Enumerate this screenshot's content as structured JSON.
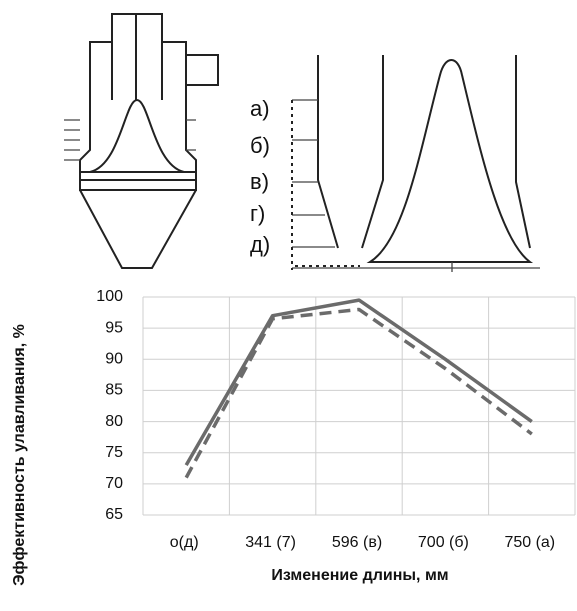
{
  "chart_data": {
    "type": "line",
    "xlabel": "Изменение длины, мм",
    "ylabel": "Эффективность улавливания, %",
    "categories": [
      "о(д)",
      "341 (7)",
      "596 (в)",
      "700 (б)",
      "750 (а)"
    ],
    "series": [
      {
        "color": "#6b6b6b",
        "dash": false,
        "values": [
          73,
          97,
          99.5,
          90,
          80
        ]
      },
      {
        "color": "#6b6b6b",
        "dash": true,
        "values": [
          71,
          96.5,
          98,
          88.5,
          78
        ]
      }
    ],
    "ylim": [
      65,
      100
    ],
    "yticks": [
      65,
      70,
      75,
      80,
      85,
      90,
      95,
      100
    ],
    "grid": true
  },
  "diagram": {
    "labels": [
      "а)",
      "б)",
      "в)",
      "г)",
      "д)"
    ]
  }
}
